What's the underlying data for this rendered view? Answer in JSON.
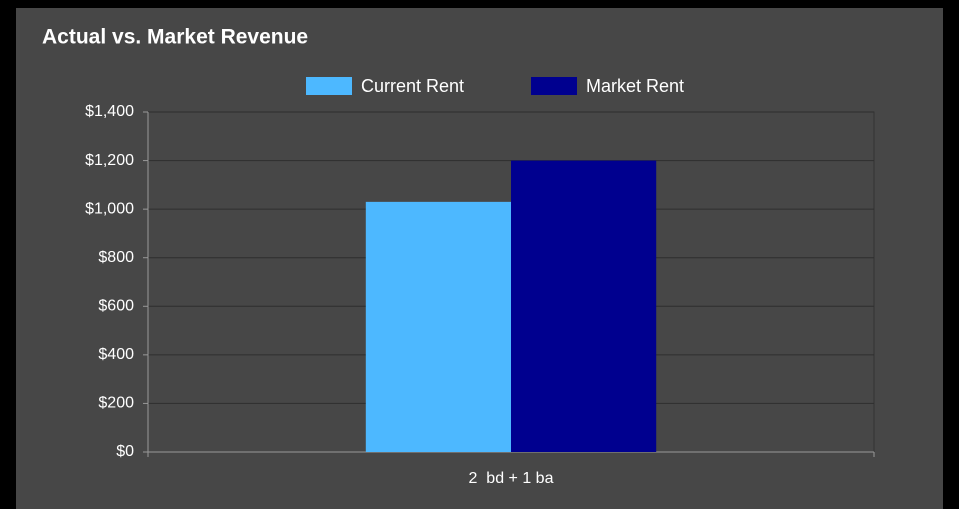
{
  "chart_data": {
    "type": "bar",
    "title": "Actual vs. Market Revenue",
    "categories": [
      "2  bd + 1 ba"
    ],
    "series": [
      {
        "name": "Current Rent",
        "color": "#4db8ff",
        "values": [
          1030
        ]
      },
      {
        "name": "Market Rent",
        "color": "#00008f",
        "values": [
          1200
        ]
      }
    ],
    "ylim": [
      0,
      1400
    ],
    "yticks": [
      {
        "value": 0,
        "label": "$0"
      },
      {
        "value": 200,
        "label": "$200"
      },
      {
        "value": 400,
        "label": "$400"
      },
      {
        "value": 600,
        "label": "$600"
      },
      {
        "value": 800,
        "label": "$800"
      },
      {
        "value": 1000,
        "label": "$1,000"
      },
      {
        "value": 1200,
        "label": "$1,200"
      },
      {
        "value": 1400,
        "label": "$1,400"
      }
    ],
    "grid": true,
    "legend": "top"
  }
}
